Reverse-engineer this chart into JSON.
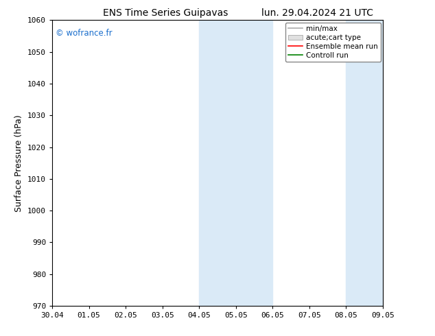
{
  "title": "ENS Time Series Guipavas",
  "title_right": "lun. 29.04.2024 21 UTC",
  "ylabel": "Surface Pressure (hPa)",
  "watermark": "© wofrance.fr",
  "ylim": [
    970,
    1060
  ],
  "yticks": [
    970,
    980,
    990,
    1000,
    1010,
    1020,
    1030,
    1040,
    1050,
    1060
  ],
  "xtick_labels": [
    "30.04",
    "01.05",
    "02.05",
    "03.05",
    "04.05",
    "05.05",
    "06.05",
    "07.05",
    "08.05",
    "09.05"
  ],
  "xtick_positions": [
    0,
    1,
    2,
    3,
    4,
    5,
    6,
    7,
    8,
    9
  ],
  "shaded_regions": [
    {
      "xmin": 4,
      "xmax": 5,
      "color": "#daeaf7"
    },
    {
      "xmin": 5,
      "xmax": 6,
      "color": "#daeaf7"
    },
    {
      "xmin": 8,
      "xmax": 9,
      "color": "#daeaf7"
    }
  ],
  "legend_entries": [
    {
      "label": "min/max",
      "color": "#aaaaaa",
      "type": "line"
    },
    {
      "label": "acute;cart type",
      "color": "#cccccc",
      "type": "patch"
    },
    {
      "label": "Ensemble mean run",
      "color": "red",
      "type": "line"
    },
    {
      "label": "Controll run",
      "color": "green",
      "type": "line"
    }
  ],
  "watermark_color": "#1a6ecc",
  "background_color": "#ffffff",
  "plot_bg_color": "#ffffff",
  "title_fontsize": 10,
  "ylabel_fontsize": 9,
  "tick_fontsize": 8,
  "legend_fontsize": 7.5
}
